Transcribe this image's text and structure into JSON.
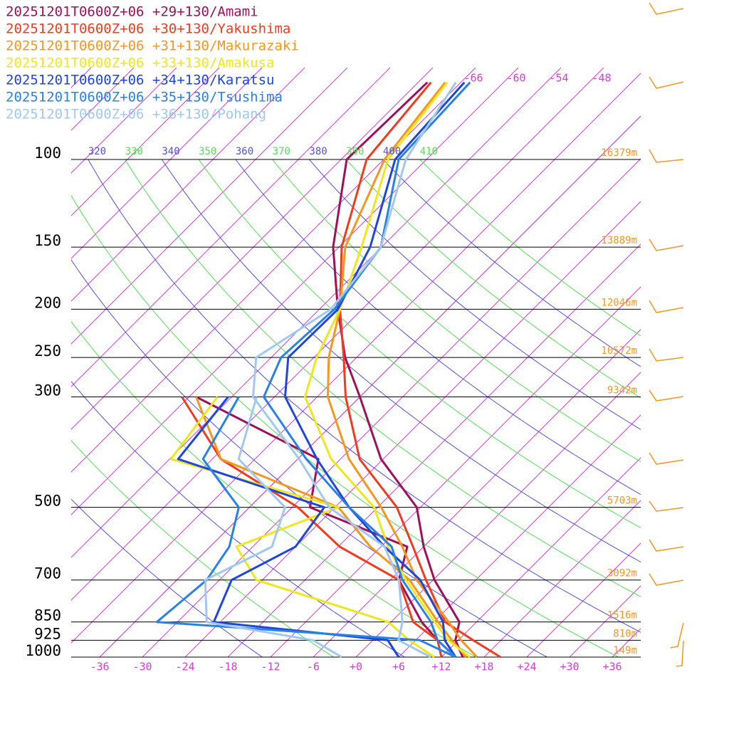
{
  "chart_data": {
    "type": "skewt",
    "ylim": [
      1000,
      100
    ],
    "yticks": [
      100,
      150,
      200,
      250,
      300,
      500,
      700,
      850,
      925,
      1000
    ],
    "height_labels": [
      "16379m",
      "13889m",
      "12046m",
      "10572m",
      "9342m",
      "5703m",
      "3092m",
      "1516m",
      "810m",
      "149m"
    ],
    "xlim": [
      -40,
      40
    ],
    "xticks": [
      {
        "value": -36,
        "label": "-36"
      },
      {
        "value": -30,
        "label": "-30"
      },
      {
        "value": -24,
        "label": "-24"
      },
      {
        "value": -18,
        "label": "-18"
      },
      {
        "value": -12,
        "label": "-12"
      },
      {
        "value": -6,
        "label": "-6"
      },
      {
        "value": 0,
        "label": "+0"
      },
      {
        "value": 6,
        "label": "+6"
      },
      {
        "value": 12,
        "label": "+12"
      },
      {
        "value": 18,
        "label": "+18"
      },
      {
        "value": 24,
        "label": "+24"
      },
      {
        "value": 30,
        "label": "+30"
      },
      {
        "value": 36,
        "label": "+36"
      }
    ],
    "isotherm_labels": [
      -66,
      -60,
      -54,
      -48
    ],
    "isotherm_color": "#d040d0",
    "theta_labels": [
      320,
      330,
      340,
      350,
      360,
      370,
      380,
      390,
      400,
      410
    ],
    "theta_colors": [
      "#5050e0",
      "#50e050"
    ],
    "pressure": [
      1000,
      925,
      850,
      700,
      600,
      500,
      400,
      300,
      250,
      200,
      150,
      100,
      70
    ],
    "dewpoint_pressure": [
      1000,
      925,
      850,
      700,
      600,
      500,
      400,
      300
    ],
    "series": [
      {
        "name": "20251201T0600Z+06 +29+130/Amami",
        "color": "#a0105a",
        "values": [
          15,
          11.6,
          9.6,
          0.2,
          -6,
          -12.5,
          -24.3,
          -36,
          -43.6,
          -51.4,
          -60.8,
          -71.2,
          -70.7
        ],
        "dewpoint": [
          14,
          9.1,
          4.3,
          -4.8,
          -8.3,
          -27.5,
          -33.1,
          -59
        ]
      },
      {
        "name": "20251201T0600Z+06 +30+130/Yakushima",
        "color": "#f03c1e",
        "values": [
          20.3,
          14.1,
          7.6,
          -1,
          -7.5,
          -15.3,
          -27.3,
          -38,
          -43.8,
          -51.1,
          -59.6,
          -68.4,
          -70.2
        ],
        "dewpoint": [
          12,
          9.1,
          3.1,
          -4.8,
          -17.8,
          -29.2,
          -46.8,
          -61
        ]
      },
      {
        "name": "20251201T0600Z+06 +31+130/Makurazaki",
        "color": "#f5961e",
        "values": [
          17,
          12.4,
          8.1,
          -2.3,
          -9,
          -17.5,
          -28.8,
          -40.5,
          -45.9,
          -51.1,
          -59.1,
          -65.9,
          -68.2
        ],
        "dewpoint": [
          15.5,
          11.1,
          6.6,
          -3.3,
          -13.5,
          -23.5,
          -46.8,
          -59
        ]
      },
      {
        "name": "20251201T0600Z+06 +33+130/Amakusa",
        "color": "#f0e61e",
        "values": [
          16,
          10.6,
          6.1,
          -3.8,
          -11,
          -18.5,
          -31.3,
          -43.7,
          -47.6,
          -51.1,
          -56.8,
          -65.4,
          -67.9
        ],
        "dewpoint": [
          11,
          5.1,
          -0.4,
          -24.8,
          -32.3,
          -23.5,
          -53.8,
          -56
        ]
      },
      {
        "name": "20251201T0600Z+06 +34+130/Karatsu",
        "color": "#1e46dc",
        "values": [
          14,
          10.1,
          7.3,
          -1.8,
          -11.5,
          -22,
          -33.3,
          -46.5,
          -51.6,
          -51.4,
          -55.6,
          -64.4,
          -65.5
        ],
        "dewpoint": [
          6,
          2.1,
          -24.9,
          -28.3,
          -24,
          -25.5,
          -52.8,
          -54.5
        ]
      },
      {
        "name": "20251201T0600Z+06 +35+130/Tsushima",
        "color": "#2882e6",
        "values": [
          14,
          9.1,
          5.6,
          -4.3,
          -10.5,
          -22,
          -34.8,
          -49.5,
          -52.6,
          -51.9,
          -54.1,
          -63.9,
          -64.7
        ],
        "dewpoint": [
          14,
          6.6,
          -32.9,
          -31.8,
          -33.3,
          -37.5,
          -49.3,
          -53
        ]
      },
      {
        "name": "20251201T0600Z+06 +36+130/Pohang",
        "color": "#a0c8f0",
        "values": [
          10.5,
          3.6,
          1.6,
          -4.8,
          -11.5,
          -24.8,
          -35.8,
          -51,
          -56.1,
          -52.4,
          -54.1,
          -62.9,
          -66.7
        ],
        "dewpoint": [
          -2,
          -8.4,
          -25.9,
          -32,
          -27.3,
          -31,
          -44.3,
          -50.5
        ]
      }
    ]
  }
}
